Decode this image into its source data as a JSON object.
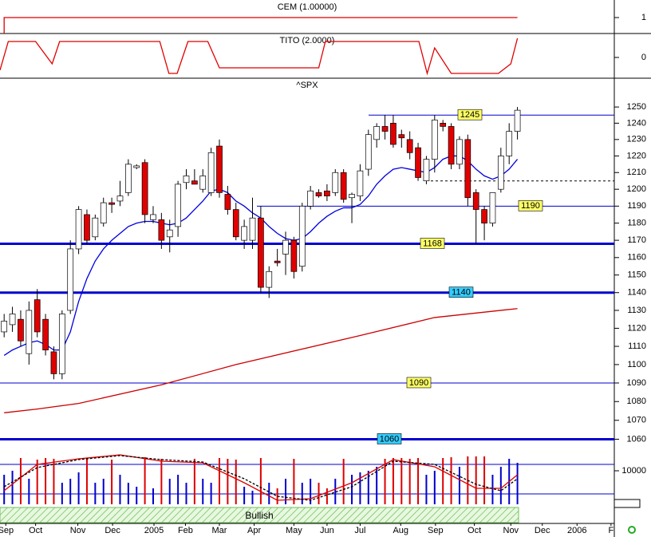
{
  "chart_data": [
    {
      "type": "line",
      "title": "CEM (1.00000)",
      "xlim": [
        -0.5,
        73.7
      ],
      "ylim": [
        0,
        2.1
      ],
      "yticks": [
        1
      ],
      "x": [
        0,
        0,
        62
      ],
      "series": [
        {
          "color": "#e00000",
          "values": [
            0,
            1,
            1
          ]
        }
      ]
    },
    {
      "type": "line",
      "title": "TITO (2.0000)",
      "xlim": [
        -0.5,
        73.7
      ],
      "ylim": [
        -1.3,
        1.5
      ],
      "yticks": [
        0
      ],
      "x": [
        -0.5,
        0.5,
        3.8,
        5.8,
        6.7,
        18.8,
        19.9,
        20.9,
        22.2,
        24.6,
        26,
        38,
        38.8,
        50.1,
        51.1,
        52,
        54,
        59.7,
        61.2,
        62
      ],
      "series": [
        {
          "color": "#e00000",
          "values": [
            -0.8,
            1,
            1,
            -0.4,
            1,
            1,
            -1,
            -1,
            1,
            1,
            -0.65,
            -0.65,
            1,
            1,
            -1,
            0.6,
            -1,
            -1,
            -0.4,
            1.2
          ]
        }
      ]
    },
    {
      "type": "candlestick",
      "title": "^SPX",
      "log_scale": true,
      "xlim": [
        -0.5,
        73.7
      ],
      "ylim": [
        1056,
        1268
      ],
      "yticks": [
        1060,
        1070,
        1080,
        1090,
        1100,
        1110,
        1120,
        1130,
        1140,
        1150,
        1160,
        1170,
        1180,
        1190,
        1200,
        1210,
        1220,
        1230,
        1240,
        1250
      ],
      "up_color": "#ffffff",
      "down_color": "#e00000",
      "x": [
        0,
        1,
        2,
        3,
        4,
        5,
        6,
        7,
        8,
        9,
        10,
        11,
        12,
        13,
        14,
        15,
        16,
        17,
        18,
        19,
        20,
        21,
        22,
        23,
        24,
        25,
        26,
        27,
        28,
        29,
        30,
        31,
        32,
        33,
        34,
        35,
        36,
        37,
        38,
        39,
        40,
        41,
        42,
        43,
        44,
        45,
        46,
        47,
        48,
        49,
        50,
        51,
        52,
        53,
        54,
        55,
        56,
        57,
        58,
        59,
        60,
        61,
        62
      ],
      "open": [
        1118,
        1122,
        1125,
        1106,
        1136,
        1125,
        1107,
        1095,
        1130,
        1165,
        1185,
        1172,
        1180,
        1192,
        1193,
        1198,
        1213,
        1216,
        1182,
        1182,
        1172,
        1178,
        1204,
        1205,
        1200,
        1198,
        1226,
        1197,
        1188,
        1170,
        1170,
        1183,
        1143,
        1158,
        1162,
        1170,
        1155,
        1190,
        1198,
        1199,
        1198,
        1210,
        1195,
        1196,
        1212,
        1230,
        1238,
        1240,
        1233,
        1230,
        1225,
        1205,
        1218,
        1240,
        1238,
        1215,
        1230,
        1198,
        1188,
        1180,
        1200,
        1220,
        1235
      ],
      "high": [
        1128,
        1132,
        1130,
        1135,
        1142,
        1128,
        1110,
        1130,
        1170,
        1190,
        1188,
        1185,
        1195,
        1195,
        1205,
        1218,
        1215,
        1218,
        1190,
        1186,
        1182,
        1205,
        1212,
        1212,
        1212,
        1225,
        1230,
        1202,
        1192,
        1182,
        1195,
        1190,
        1155,
        1165,
        1175,
        1172,
        1192,
        1202,
        1200,
        1203,
        1212,
        1212,
        1198,
        1215,
        1236,
        1240,
        1245,
        1245,
        1236,
        1235,
        1228,
        1220,
        1245,
        1242,
        1240,
        1232,
        1233,
        1200,
        1190,
        1198,
        1225,
        1240,
        1250
      ],
      "low": [
        1115,
        1118,
        1110,
        1100,
        1115,
        1105,
        1092,
        1092,
        1128,
        1162,
        1168,
        1170,
        1178,
        1186,
        1190,
        1196,
        1212,
        1180,
        1180,
        1165,
        1163,
        1172,
        1200,
        1203,
        1198,
        1196,
        1195,
        1185,
        1170,
        1165,
        1165,
        1140,
        1137,
        1155,
        1150,
        1148,
        1152,
        1188,
        1195,
        1193,
        1196,
        1192,
        1180,
        1193,
        1208,
        1225,
        1230,
        1225,
        1225,
        1218,
        1205,
        1203,
        1210,
        1235,
        1212,
        1212,
        1190,
        1168,
        1170,
        1178,
        1198,
        1215,
        1230
      ],
      "close": [
        1124,
        1128,
        1113,
        1130,
        1118,
        1108,
        1095,
        1128,
        1165,
        1188,
        1170,
        1183,
        1192,
        1191,
        1196,
        1215,
        1214,
        1185,
        1185,
        1170,
        1176,
        1203,
        1208,
        1203,
        1208,
        1222,
        1198,
        1188,
        1172,
        1178,
        1183,
        1143,
        1152,
        1157,
        1170,
        1152,
        1190,
        1199,
        1196,
        1196,
        1210,
        1194,
        1197,
        1211,
        1233,
        1238,
        1235,
        1227,
        1231,
        1222,
        1207,
        1218,
        1242,
        1238,
        1215,
        1230,
        1195,
        1188,
        1180,
        1198,
        1220,
        1235,
        1248
      ],
      "series": [
        {
          "color": "#cc0000",
          "x": [
            0,
            4,
            9,
            19,
            28,
            43,
            52,
            62
          ],
          "values": [
            1074,
            1076,
            1079,
            1089,
            1100,
            1116,
            1126,
            1131
          ]
        },
        {
          "color": "#0000dd",
          "values": [
            1105,
            1108,
            1110,
            1112,
            1113,
            1111,
            1108,
            1108,
            1118,
            1135,
            1148,
            1158,
            1165,
            1170,
            1174,
            1178,
            1180,
            1181,
            1181,
            1180,
            1179,
            1180,
            1183,
            1188,
            1193,
            1199,
            1200,
            1198,
            1193,
            1190,
            1186,
            1183,
            1178,
            1174,
            1171,
            1170,
            1171,
            1175,
            1180,
            1184,
            1187,
            1189,
            1189,
            1191,
            1196,
            1203,
            1208,
            1212,
            1213,
            1212,
            1211,
            1210,
            1213,
            1218,
            1220,
            1220,
            1217,
            1212,
            1208,
            1206,
            1208,
            1212,
            1218
          ]
        }
      ],
      "levels": [
        {
          "value": 1245,
          "color": "#0000cc",
          "width": 1,
          "label_color": "#ffff66"
        },
        {
          "value": 1205,
          "color": "#000000",
          "width": 1,
          "dashed": true
        },
        {
          "value": 1190,
          "color": "#0000cc",
          "width": 1,
          "label_color": "#ffff66"
        },
        {
          "value": 1168,
          "color": "#0000cc",
          "width": 3,
          "label_color": "#ffff66"
        },
        {
          "value": 1140,
          "color": "#0000cc",
          "width": 3,
          "label_color": "#33ccff"
        },
        {
          "value": 1090,
          "color": "#0000cc",
          "width": 1,
          "label_color": "#ffff66"
        },
        {
          "value": 1060,
          "color": "#0000cc",
          "width": 3,
          "label_color": "#33ccff"
        }
      ]
    },
    {
      "type": "bar_oscillator",
      "xlim": [
        -0.5,
        73.7
      ],
      "ylim": [
        9958,
        10030
      ],
      "yticks": [
        10000
      ],
      "up_color": "#0000cc",
      "down_color": "#dd0000",
      "band_label": "Bullish",
      "bars": [
        9995,
        10000,
        10016,
        9990,
        10014,
        10016,
        10015,
        9985,
        9990,
        9998,
        10016,
        9985,
        9990,
        10014,
        9995,
        9985,
        9980,
        10017,
        9978,
        10015,
        9990,
        9995,
        9985,
        10015,
        9990,
        9985,
        10016,
        10015,
        10014,
        9980,
        9975,
        10016,
        9985,
        9978,
        9990,
        10015,
        9985,
        9990,
        9985,
        9978,
        9990,
        10015,
        9995,
        9998,
        10000,
        10005,
        10015,
        10016,
        10016,
        10015,
        10016,
        9995,
        10000,
        10016,
        10017,
        10005,
        10018,
        10018,
        10018,
        9995,
        10005,
        10015,
        10010
      ],
      "levels": [
        {
          "value": 10008,
          "color": "#0000cc",
          "width": 1
        },
        {
          "value": 9971,
          "color": "#0000cc",
          "width": 1
        }
      ],
      "x": [
        0,
        4,
        9,
        14,
        19,
        24,
        29,
        33,
        37,
        42,
        47,
        52,
        57,
        60,
        62
      ],
      "series": [
        {
          "color": "#dd0000",
          "values": [
            9975,
            10008,
            10015,
            10020,
            10012,
            10010,
            9985,
            9963,
            9965,
            9985,
            10014,
            10005,
            9978,
            9978,
            9995
          ]
        },
        {
          "color": "#000000",
          "dashed": true,
          "values": [
            9980,
            10004,
            10014,
            10019,
            10014,
            10011,
            9990,
            9968,
            9963,
            9980,
            10012,
            10008,
            9983,
            9975,
            9990
          ]
        }
      ],
      "xticks": [
        {
          "value": 0.2,
          "label": "Sep"
        },
        {
          "value": 3.8,
          "label": "Oct"
        },
        {
          "value": 8.9,
          "label": "Nov"
        },
        {
          "value": 13.1,
          "label": "Dec"
        },
        {
          "value": 18.1,
          "label": "2005"
        },
        {
          "value": 21.9,
          "label": "Feb"
        },
        {
          "value": 26,
          "label": "Mar"
        },
        {
          "value": 30.2,
          "label": "Apr"
        },
        {
          "value": 35,
          "label": "May"
        },
        {
          "value": 39,
          "label": "Jun"
        },
        {
          "value": 43,
          "label": "Jul"
        },
        {
          "value": 47.9,
          "label": "Aug"
        },
        {
          "value": 52.1,
          "label": "Sep"
        },
        {
          "value": 56.8,
          "label": "Oct"
        },
        {
          "value": 61.2,
          "label": "Nov"
        },
        {
          "value": 65,
          "label": "Dec"
        },
        {
          "value": 69.2,
          "label": "2006"
        },
        {
          "value": 73.3,
          "label": "F"
        }
      ]
    }
  ]
}
